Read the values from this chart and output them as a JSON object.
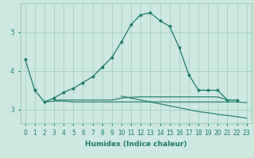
{
  "xlabel": "Humidex (Indice chaleur)",
  "bg_color": "#cce8e0",
  "grid_color": "#99ccbb",
  "line_color": "#1a7a6a",
  "x_values": [
    0,
    1,
    2,
    3,
    4,
    5,
    6,
    7,
    8,
    9,
    10,
    11,
    12,
    13,
    14,
    15,
    16,
    17,
    18,
    19,
    20,
    21,
    22,
    23
  ],
  "line_start": [
    4.3,
    3.5,
    null,
    null,
    null,
    null,
    null,
    null,
    null,
    null,
    null,
    null,
    null,
    null,
    null,
    null,
    null,
    null,
    null,
    null,
    null,
    null,
    null,
    null
  ],
  "line_main": [
    null,
    3.5,
    3.2,
    3.3,
    3.45,
    3.55,
    3.7,
    3.85,
    4.1,
    4.35,
    4.75,
    5.2,
    5.45,
    5.5,
    5.3,
    5.15,
    4.6,
    3.9,
    3.5,
    3.5,
    3.5,
    3.25,
    3.25,
    null
  ],
  "line_flat1": [
    null,
    null,
    3.2,
    3.22,
    3.22,
    3.2,
    3.2,
    3.2,
    3.2,
    3.2,
    3.2,
    3.2,
    3.2,
    3.2,
    3.2,
    3.2,
    3.2,
    3.2,
    3.2,
    3.2,
    3.2,
    3.2,
    3.2,
    3.18
  ],
  "line_flat2": [
    null,
    null,
    null,
    3.25,
    3.25,
    3.25,
    3.25,
    3.25,
    3.25,
    3.25,
    3.3,
    3.32,
    3.33,
    3.33,
    3.33,
    3.33,
    3.33,
    3.33,
    3.33,
    3.33,
    3.33,
    3.25,
    3.25,
    null
  ],
  "line_decay": [
    null,
    null,
    null,
    null,
    null,
    null,
    null,
    null,
    null,
    null,
    3.35,
    3.3,
    3.25,
    3.2,
    3.15,
    3.1,
    3.05,
    3.0,
    2.95,
    2.92,
    2.88,
    2.85,
    2.82,
    2.78
  ],
  "ylim": [
    2.65,
    5.75
  ],
  "yticks": [
    3,
    4,
    5
  ],
  "xlim": [
    -0.5,
    23.5
  ],
  "xticks": [
    0,
    1,
    2,
    3,
    4,
    5,
    6,
    7,
    8,
    9,
    10,
    11,
    12,
    13,
    14,
    15,
    16,
    17,
    18,
    19,
    20,
    21,
    22,
    23
  ],
  "tick_fontsize": 5.5,
  "label_fontsize": 6.5
}
